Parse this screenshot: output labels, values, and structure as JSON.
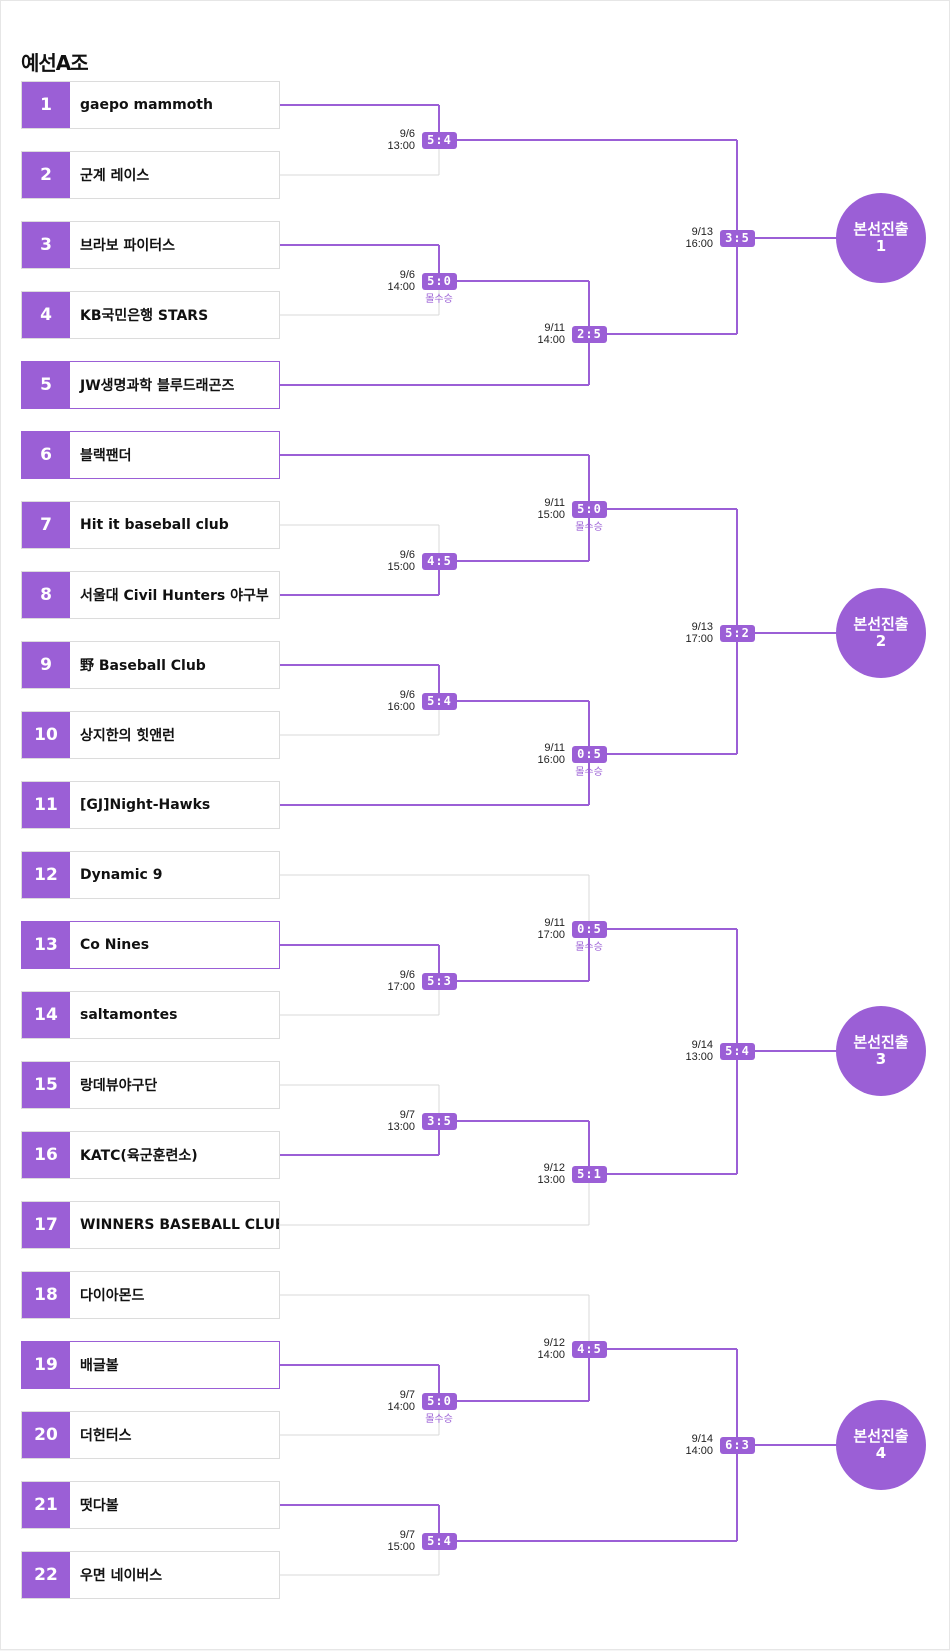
{
  "title": "예선A조",
  "accent_color": "#9b5fd6",
  "teams": [
    {
      "seed": "1",
      "name": "gaepo mammoth",
      "advanced": false
    },
    {
      "seed": "2",
      "name": "군계 레이스",
      "advanced": false
    },
    {
      "seed": "3",
      "name": "브라보 파이터스",
      "advanced": false
    },
    {
      "seed": "4",
      "name": "KB국민은행 STARS",
      "advanced": false
    },
    {
      "seed": "5",
      "name": "JW생명과학 블루드래곤즈",
      "advanced": true
    },
    {
      "seed": "6",
      "name": "블랙팬더",
      "advanced": true
    },
    {
      "seed": "7",
      "name": "Hit it baseball club",
      "advanced": false
    },
    {
      "seed": "8",
      "name": "서울대 Civil Hunters 야구부",
      "advanced": false
    },
    {
      "seed": "9",
      "name": "野 Baseball Club",
      "advanced": false
    },
    {
      "seed": "10",
      "name": "상지한의 힛앤런",
      "advanced": false
    },
    {
      "seed": "11",
      "name": "[GJ]Night-Hawks",
      "advanced": false
    },
    {
      "seed": "12",
      "name": "Dynamic 9",
      "advanced": false
    },
    {
      "seed": "13",
      "name": "Co Nines",
      "advanced": true
    },
    {
      "seed": "14",
      "name": "saltamontes",
      "advanced": false
    },
    {
      "seed": "15",
      "name": "랑데뷰야구단",
      "advanced": false
    },
    {
      "seed": "16",
      "name": "KATC(육군훈련소)",
      "advanced": false
    },
    {
      "seed": "17",
      "name": "WINNERS BASEBALL CLUB",
      "advanced": false
    },
    {
      "seed": "18",
      "name": "다이아몬드",
      "advanced": false
    },
    {
      "seed": "19",
      "name": "배글볼",
      "advanced": true
    },
    {
      "seed": "20",
      "name": "더헌터스",
      "advanced": false
    },
    {
      "seed": "21",
      "name": "떳다볼",
      "advanced": false
    },
    {
      "seed": "22",
      "name": "우면 네이버스",
      "advanced": false
    }
  ],
  "matches": [
    {
      "date": "9/6",
      "time": "13:00",
      "score": "5:4",
      "forfeit": ""
    },
    {
      "date": "9/6",
      "time": "14:00",
      "score": "5:0",
      "forfeit": "몰수승"
    },
    {
      "date": "9/6",
      "time": "15:00",
      "score": "4:5",
      "forfeit": ""
    },
    {
      "date": "9/6",
      "time": "16:00",
      "score": "5:4",
      "forfeit": ""
    },
    {
      "date": "9/6",
      "time": "17:00",
      "score": "5:3",
      "forfeit": ""
    },
    {
      "date": "9/7",
      "time": "13:00",
      "score": "3:5",
      "forfeit": ""
    },
    {
      "date": "9/7",
      "time": "14:00",
      "score": "5:0",
      "forfeit": "몰수승"
    },
    {
      "date": "9/7",
      "time": "15:00",
      "score": "5:4",
      "forfeit": ""
    },
    {
      "date": "9/11",
      "time": "14:00",
      "score": "2:5",
      "forfeit": ""
    },
    {
      "date": "9/11",
      "time": "15:00",
      "score": "5:0",
      "forfeit": "몰수승"
    },
    {
      "date": "9/11",
      "time": "16:00",
      "score": "0:5",
      "forfeit": "몰수승"
    },
    {
      "date": "9/11",
      "time": "17:00",
      "score": "0:5",
      "forfeit": "몰수승"
    },
    {
      "date": "9/12",
      "time": "13:00",
      "score": "5:1",
      "forfeit": ""
    },
    {
      "date": "9/12",
      "time": "14:00",
      "score": "4:5",
      "forfeit": ""
    },
    {
      "date": "9/13",
      "time": "16:00",
      "score": "3:5",
      "forfeit": ""
    },
    {
      "date": "9/13",
      "time": "17:00",
      "score": "5:2",
      "forfeit": ""
    },
    {
      "date": "9/14",
      "time": "13:00",
      "score": "5:4",
      "forfeit": ""
    },
    {
      "date": "9/14",
      "time": "14:00",
      "score": "6:3",
      "forfeit": ""
    }
  ],
  "finals": [
    {
      "label": "본선진출",
      "number": "1"
    },
    {
      "label": "본선진출",
      "number": "2"
    },
    {
      "label": "본선진출",
      "number": "3"
    },
    {
      "label": "본선진출",
      "number": "4"
    }
  ]
}
